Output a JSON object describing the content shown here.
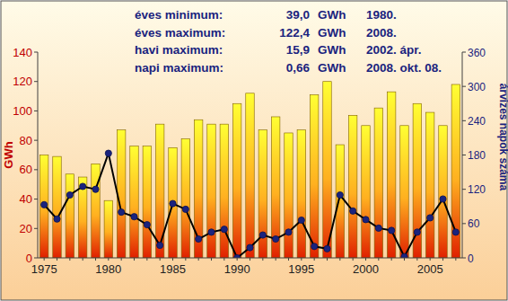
{
  "chart_data": {
    "type": "bar",
    "y_label": "GWh",
    "y2_label": "árvizes napok száma",
    "annotations": [
      {
        "label": "éves minimum:",
        "value": "39,0",
        "unit": "GWh",
        "date": "1980."
      },
      {
        "label": "éves maximum:",
        "value": "122,4",
        "unit": "GWh",
        "date": "2008."
      },
      {
        "label": "havi maximum:",
        "value": "15,9",
        "unit": "GWh",
        "date": "2002. ápr."
      },
      {
        "label": "napi maximum:",
        "value": "0,66",
        "unit": "GWh",
        "date": "2008. okt. 08."
      }
    ],
    "categories": [
      "1975",
      null,
      null,
      null,
      null,
      "1980",
      null,
      null,
      null,
      null,
      "1985",
      null,
      null,
      null,
      null,
      "1990",
      null,
      null,
      null,
      null,
      "1995",
      null,
      null,
      null,
      null,
      "2000",
      null,
      null,
      null,
      null,
      "2005",
      null,
      null
    ],
    "series": [
      {
        "type": "bar",
        "color": "#ffff33",
        "values": [
          70,
          69,
          57,
          55,
          64,
          39,
          87,
          76,
          76,
          91,
          75,
          81,
          94,
          91,
          91,
          105,
          112,
          87,
          96,
          85,
          87,
          111,
          120,
          77,
          97,
          90,
          102,
          113,
          90,
          105,
          99,
          90,
          118
        ]
      },
      {
        "type": "line",
        "axis": "y2",
        "color": "#000000",
        "marker": "circle",
        "line_style": "solid",
        "values": [
          93,
          68,
          110,
          125,
          120,
          183,
          80,
          72,
          58,
          22,
          95,
          85,
          33,
          45,
          50,
          0,
          18,
          40,
          33,
          45,
          66,
          20,
          16,
          110,
          82,
          67,
          52,
          48,
          2,
          45,
          70,
          103,
          45
        ]
      }
    ],
    "ylim": [
      0,
      140
    ],
    "yticks": [
      0,
      20,
      40,
      60,
      80,
      100,
      120,
      140
    ],
    "y2lim": [
      0,
      360
    ],
    "y2ticks": [
      0,
      60,
      120,
      180,
      240,
      300,
      360
    ],
    "grid": false
  }
}
